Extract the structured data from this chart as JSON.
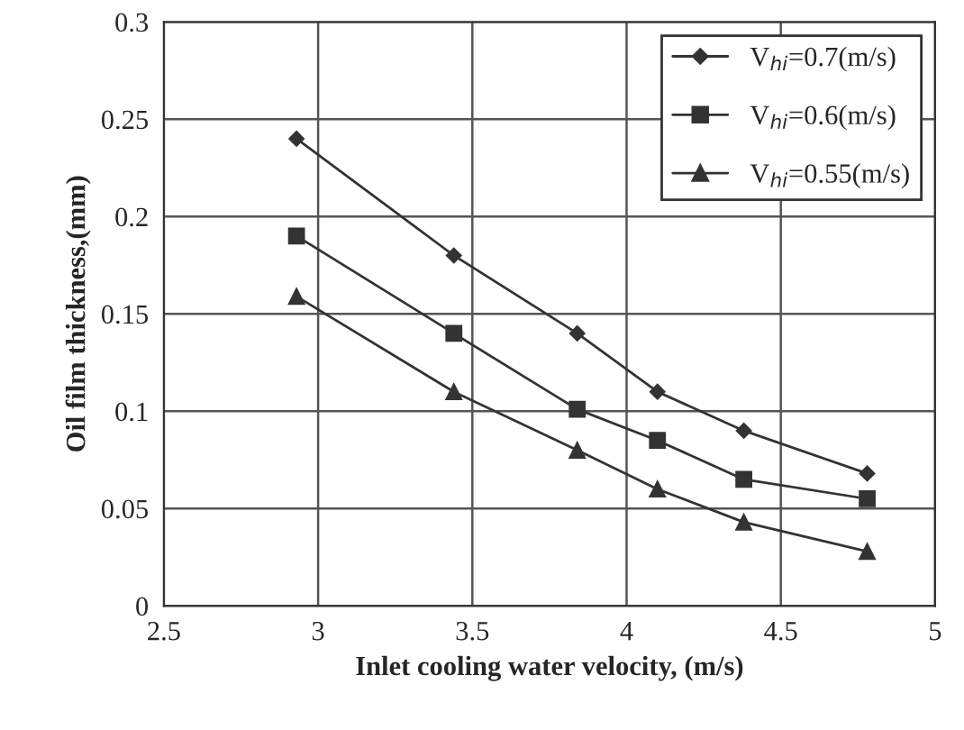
{
  "chart_data": {
    "type": "line",
    "xlabel": "Inlet cooling water velocity, (m/s)",
    "ylabel": "Oil film thickness,(mm)",
    "x": [
      2.93,
      3.44,
      3.84,
      4.1,
      4.38,
      4.78
    ],
    "series": [
      {
        "name": "V$_{hi}$=0.7(m/s)",
        "color": "#333333",
        "marker": "diamond",
        "values": [
          0.24,
          0.18,
          0.14,
          0.11,
          0.09,
          0.068
        ]
      },
      {
        "name": "V$_{hi}$=0.6(m/s)",
        "color": "#333333",
        "marker": "square",
        "values": [
          0.19,
          0.14,
          0.101,
          0.085,
          0.065,
          0.055
        ]
      },
      {
        "name": "V$_{hi}$=0.55(m/s)",
        "color": "#333333",
        "marker": "triangle",
        "values": [
          0.159,
          0.11,
          0.08,
          0.06,
          0.043,
          0.028
        ]
      }
    ],
    "xlim": [
      2.5,
      5
    ],
    "xticks": [
      2.5,
      3,
      3.5,
      4,
      4.5,
      5
    ],
    "ylim": [
      0,
      0.3
    ],
    "yticks": [
      0,
      0.05,
      0.1,
      0.15,
      0.2,
      0.25,
      0.3
    ],
    "grid": true,
    "legend": "top right",
    "line_style": "solid"
  }
}
